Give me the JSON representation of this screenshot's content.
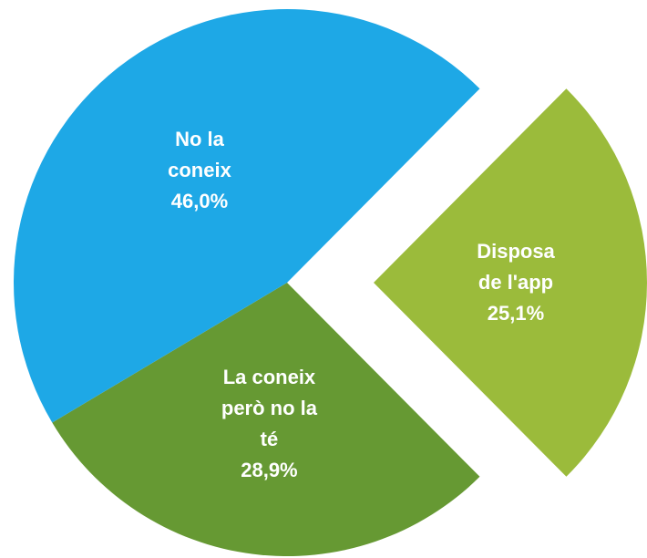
{
  "chart_data": {
    "type": "pie",
    "categories": [
      "Disposa de l'app",
      "La coneix però no la té",
      "No la coneix"
    ],
    "values": [
      25.1,
      28.9,
      46.0
    ],
    "value_labels": [
      "25,1%",
      "28,9%",
      "46,0%"
    ],
    "colors": [
      "#9bbb3b",
      "#669933",
      "#1ea8e6"
    ],
    "exploded": [
      true,
      false,
      false
    ]
  }
}
